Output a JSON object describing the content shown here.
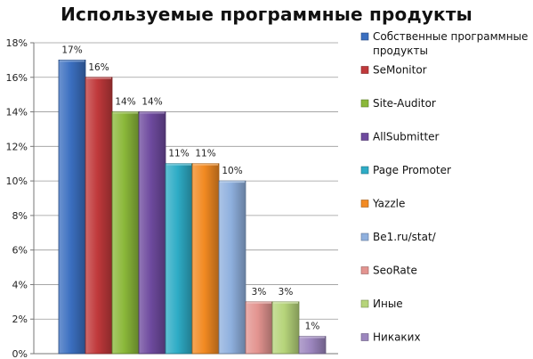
{
  "chart_data": {
    "type": "bar",
    "title": "Используемые программные продукты",
    "xlabel": "",
    "ylabel": "",
    "ylim": [
      0,
      18
    ],
    "y_tick_values": [
      0,
      2,
      4,
      6,
      8,
      10,
      12,
      14,
      16,
      18
    ],
    "y_tick_format": "%",
    "grid": true,
    "legend_position": "right",
    "series": [
      {
        "label": "Собственные программные продукты",
        "value": 17,
        "data_label": "17%",
        "color": "#3B6FC0"
      },
      {
        "label": "SeMonitor",
        "value": 16,
        "data_label": "16%",
        "color": "#C0393B"
      },
      {
        "label": "Site-Auditor",
        "value": 14,
        "data_label": "14%",
        "color": "#8BB83A"
      },
      {
        "label": "AllSubmitter",
        "value": 14,
        "data_label": "14%",
        "color": "#6E4A9E"
      },
      {
        "label": "Page Promoter",
        "value": 11,
        "data_label": "11%",
        "color": "#2EACC6"
      },
      {
        "label": "Yazzle",
        "value": 11,
        "data_label": "11%",
        "color": "#F28A22"
      },
      {
        "label": "Be1.ru/stat/",
        "value": 10,
        "data_label": "10%",
        "color": "#8FB0DE"
      },
      {
        "label": "SeoRate",
        "value": 3,
        "data_label": "3%",
        "color": "#E39490"
      },
      {
        "label": "Иные",
        "value": 3,
        "data_label": "3%",
        "color": "#B6D47A"
      },
      {
        "label": "Никаких",
        "value": 1,
        "data_label": "1%",
        "color": "#9C86BE"
      }
    ]
  }
}
